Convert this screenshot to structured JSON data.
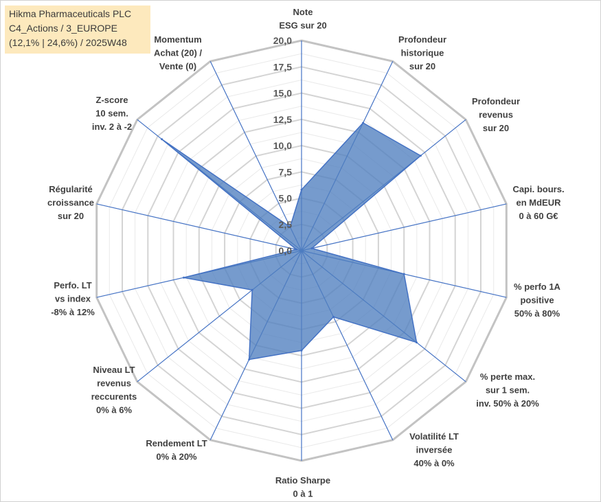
{
  "title": {
    "line1": "Hikma Pharmaceuticals PLC",
    "line2": "C4_Actions / 3_EUROPE",
    "line3": "(12,1% | 24,6%) / 2025W48"
  },
  "colors": {
    "fill": "#4f7fbf",
    "stroke": "#4472c4",
    "grid": "#c8c8c8",
    "spoke": "#4472c4"
  },
  "chart_data": {
    "type": "radar",
    "title": "Hikma Pharmaceuticals PLC",
    "rlim": [
      0,
      20
    ],
    "ticks": [
      "0,0",
      "2,5",
      "5,0",
      "7,5",
      "10,0",
      "12,5",
      "15,0",
      "17,5",
      "20,0"
    ],
    "axes": [
      {
        "label": [
          "Note",
          "ESG sur 20"
        ],
        "value": 5.8
      },
      {
        "label": [
          "Profondeur",
          "historique",
          "sur 20"
        ],
        "value": 13.5
      },
      {
        "label": [
          "Profondeur",
          "revenus",
          "sur 20"
        ],
        "value": 14.5
      },
      {
        "label": [
          "Capi. bours.",
          "en MdEUR",
          "0 à 60 G€"
        ],
        "value": 1.0
      },
      {
        "label": [
          "% perfo 1A",
          "positive",
          "50% à 80%"
        ],
        "value": 10.0
      },
      {
        "label": [
          "% perte max.",
          "sur 1 sem.",
          "inv. 50% à 20%"
        ],
        "value": 14.0
      },
      {
        "label": [
          "Volatilité LT",
          "inversée",
          "40% à 0%"
        ],
        "value": 7.0
      },
      {
        "label": [
          "Ratio Sharpe",
          "0 à 1"
        ],
        "value": 9.5
      },
      {
        "label": [
          "Rendement LT",
          "0% à 20%"
        ],
        "value": 11.5
      },
      {
        "label": [
          "Niveau LT",
          "revenus",
          "reccurents",
          "0% à 6%"
        ],
        "value": 6.0
      },
      {
        "label": [
          "Perfo. LT",
          "vs index",
          "-8% à 12%"
        ],
        "value": 11.5
      },
      {
        "label": [
          "Régularité",
          "croissance",
          "sur 20"
        ],
        "value": 0.5
      },
      {
        "label": [
          "Z-score",
          "10 sem.",
          "inv. 2 à -2"
        ],
        "value": 17.0
      },
      {
        "label": [
          "Momentum",
          "Achat (20) /",
          "Vente (0)"
        ],
        "value": 2.5
      }
    ]
  }
}
